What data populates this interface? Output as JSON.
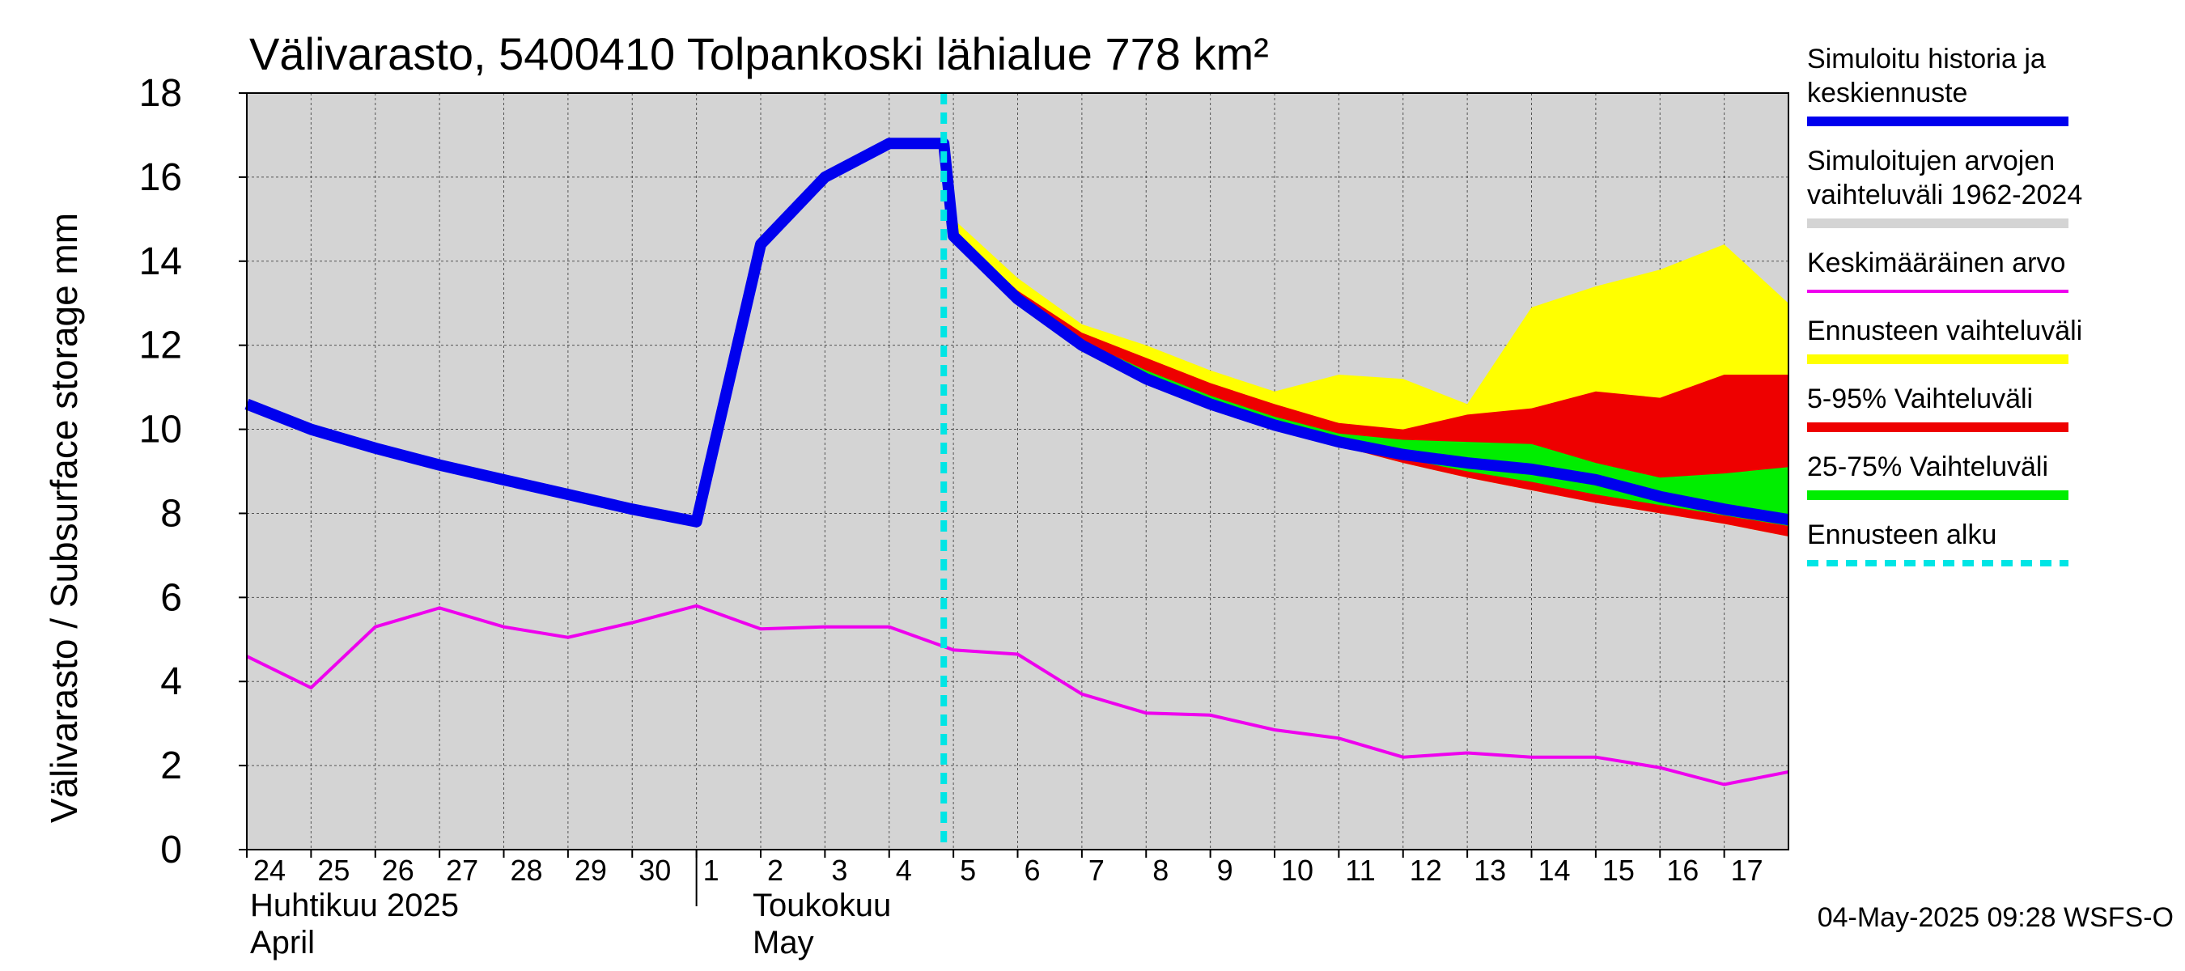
{
  "chart_data": {
    "type": "area",
    "title": "Välivarasto, 5400410 Tolpankoski lähialue 778 km²",
    "ylabel": "Välivarasto / Subsurface storage  mm",
    "ylim": [
      0,
      18
    ],
    "yticks": [
      "0",
      "2",
      "4",
      "6",
      "8",
      "10",
      "12",
      "14",
      "16",
      "18"
    ],
    "x_labels": [
      "24",
      "25",
      "26",
      "27",
      "28",
      "29",
      "30",
      "1",
      "2",
      "3",
      "4",
      "5",
      "6",
      "7",
      "8",
      "9",
      "10",
      "11",
      "12",
      "13",
      "14",
      "15",
      "16",
      "17"
    ],
    "month_labels": [
      {
        "line1": "Huhtikuu  2025",
        "line2": "April"
      },
      {
        "line1": "Toukokuu",
        "line2": "May"
      }
    ],
    "forecast_start_day": 10.85,
    "grid": true,
    "colors": {
      "plot_bg": "#d4d4d4",
      "history": "#0000ee",
      "mean": "#ee00ee",
      "range": "#ffff00",
      "p5_95": "#ee0000",
      "p25_75": "#00ee00",
      "forecast_start": "#00e5e5",
      "sim_range": "#d4d4d4"
    },
    "series": [
      {
        "name": "Simuloitu historia ja keskiennuste",
        "x": [
          0,
          1,
          2,
          3,
          4,
          5,
          6,
          7,
          8,
          9,
          10,
          10.85,
          11,
          12,
          13,
          14,
          15,
          16,
          17,
          18,
          19,
          20,
          21,
          22,
          23,
          24
        ],
        "values": [
          10.6,
          10.0,
          9.55,
          9.15,
          8.8,
          8.45,
          8.1,
          7.8,
          14.4,
          16.0,
          16.8,
          16.8,
          14.6,
          13.1,
          12.0,
          11.2,
          10.6,
          10.1,
          9.7,
          9.4,
          9.2,
          9.05,
          8.8,
          8.4,
          8.1,
          7.85
        ]
      },
      {
        "name": "Keskimääräinen arvo",
        "x": [
          0,
          1,
          2,
          3,
          4,
          5,
          6,
          7,
          8,
          9,
          10,
          11,
          12,
          13,
          14,
          15,
          16,
          17,
          18,
          19,
          20,
          21,
          22,
          23,
          24
        ],
        "values": [
          4.6,
          3.85,
          5.3,
          5.75,
          5.3,
          5.05,
          5.4,
          5.8,
          5.25,
          5.3,
          5.3,
          4.75,
          4.65,
          3.7,
          3.25,
          3.2,
          2.85,
          2.65,
          2.2,
          2.3,
          2.2,
          2.2,
          1.95,
          1.55,
          1.85
        ]
      }
    ],
    "bands": [
      {
        "name": "Ennusteen vaihteluväli",
        "x": [
          10.85,
          11,
          12,
          13,
          14,
          15,
          16,
          17,
          18,
          19,
          20,
          21,
          22,
          23,
          24
        ],
        "upper": [
          17.1,
          15.0,
          13.6,
          12.5,
          12.0,
          11.4,
          10.9,
          11.3,
          11.2,
          10.6,
          12.9,
          13.4,
          13.8,
          14.4,
          13.0
        ],
        "lower": [
          16.7,
          14.5,
          13.0,
          11.9,
          11.1,
          10.5,
          10.0,
          9.6,
          9.2,
          8.85,
          8.55,
          8.25,
          8.0,
          7.75,
          7.45
        ]
      },
      {
        "name": "5-95% Vaihteluväli",
        "x": [
          10.85,
          11,
          12,
          13,
          14,
          15,
          16,
          17,
          18,
          19,
          20,
          21,
          22,
          23,
          24
        ],
        "upper": [
          16.9,
          14.7,
          13.3,
          12.3,
          11.7,
          11.1,
          10.6,
          10.15,
          10.0,
          10.35,
          10.5,
          10.9,
          10.75,
          11.3,
          11.3
        ],
        "lower": [
          16.7,
          14.5,
          13.0,
          11.9,
          11.1,
          10.5,
          10.0,
          9.6,
          9.2,
          8.85,
          8.55,
          8.25,
          8.0,
          7.75,
          7.45
        ]
      },
      {
        "name": "25-75% Vaihteluväli",
        "x": [
          10.85,
          11,
          12,
          13,
          14,
          15,
          16,
          17,
          18,
          19,
          20,
          21,
          22,
          23,
          24
        ],
        "upper": [
          16.8,
          14.6,
          13.15,
          12.1,
          11.4,
          10.8,
          10.3,
          9.9,
          9.75,
          9.7,
          9.65,
          9.2,
          8.85,
          8.95,
          9.1
        ],
        "lower": [
          16.75,
          14.55,
          13.05,
          12.0,
          11.2,
          10.6,
          10.05,
          9.65,
          9.3,
          9.0,
          8.75,
          8.45,
          8.2,
          7.95,
          7.7
        ]
      }
    ],
    "legend": [
      {
        "label": "Simuloitu historia ja keskiennuste",
        "color": "#0000ee",
        "style": "thick"
      },
      {
        "label": "Simuloitujen arvojen vaihteluväli 1962-2024",
        "color": "#d4d4d4",
        "style": "thick"
      },
      {
        "label": "Keskimääräinen arvo",
        "color": "#ee00ee",
        "style": "thin"
      },
      {
        "label": "Ennusteen vaihteluväli",
        "color": "#ffff00",
        "style": "thick"
      },
      {
        "label": "5-95% Vaihteluväli",
        "color": "#ee0000",
        "style": "thick"
      },
      {
        "label": "25-75% Vaihteluväli",
        "color": "#00ee00",
        "style": "thick"
      },
      {
        "label": "Ennusteen alku",
        "color": "#00e5e5",
        "style": "dashed"
      }
    ]
  },
  "footer": "04-May-2025 09:28 WSFS-O"
}
